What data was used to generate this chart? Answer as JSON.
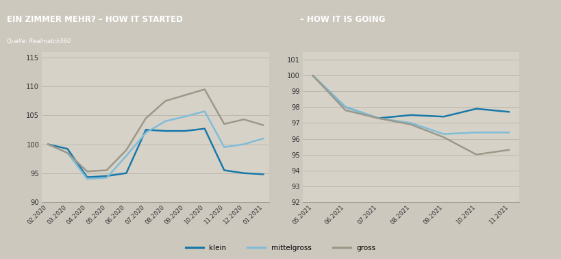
{
  "title_left": "EIN ZIMMER MEHR? – HOW IT STARTED",
  "title_right": "– HOW IT IS GOING",
  "subtitle": "Quelle: Realmatch360",
  "header_bg": "#afa898",
  "chart_bg": "#ccc8be",
  "plot_bg": "#d6d2c8",
  "left": {
    "x_labels": [
      "02.2020",
      "03.2020",
      "04.2020",
      "05.2020",
      "06.2020",
      "07.2020",
      "08.2020",
      "09.2020",
      "10.2020",
      "11.2020",
      "12.2020",
      "01.2021"
    ],
    "klein": [
      100.0,
      99.2,
      94.3,
      94.5,
      95.0,
      102.5,
      102.3,
      102.3,
      102.7,
      95.5,
      95.0,
      94.8
    ],
    "mittelgross": [
      100.0,
      98.5,
      94.0,
      94.2,
      98.0,
      102.0,
      104.0,
      104.8,
      105.7,
      99.5,
      100.0,
      101.0
    ],
    "gross": [
      100.0,
      98.5,
      95.3,
      95.5,
      99.0,
      104.5,
      107.5,
      108.5,
      109.5,
      103.5,
      104.3,
      103.3
    ],
    "ylim": [
      90,
      116
    ],
    "yticks": [
      90,
      95,
      100,
      105,
      110,
      115
    ]
  },
  "right": {
    "x_labels": [
      "05.2021",
      "06.2021",
      "07.2021",
      "08.2021",
      "09.2021",
      "10.2021",
      "11.2021"
    ],
    "klein": [
      100.0,
      98.0,
      97.3,
      97.5,
      97.4,
      97.9,
      97.7
    ],
    "mittelgross": [
      100.0,
      98.0,
      97.3,
      97.0,
      96.3,
      96.4,
      96.4
    ],
    "gross": [
      100.0,
      97.8,
      97.3,
      96.9,
      96.1,
      95.0,
      95.3
    ],
    "ylim": [
      92,
      101.5
    ],
    "yticks": [
      92,
      93,
      94,
      95,
      96,
      97,
      98,
      99,
      100,
      101
    ]
  },
  "color_klein": "#1878a8",
  "color_mittelgross": "#80bcd8",
  "color_gross": "#9c9888",
  "legend_labels": [
    "klein",
    "mittelgross",
    "gross"
  ],
  "linewidth": 1.8
}
